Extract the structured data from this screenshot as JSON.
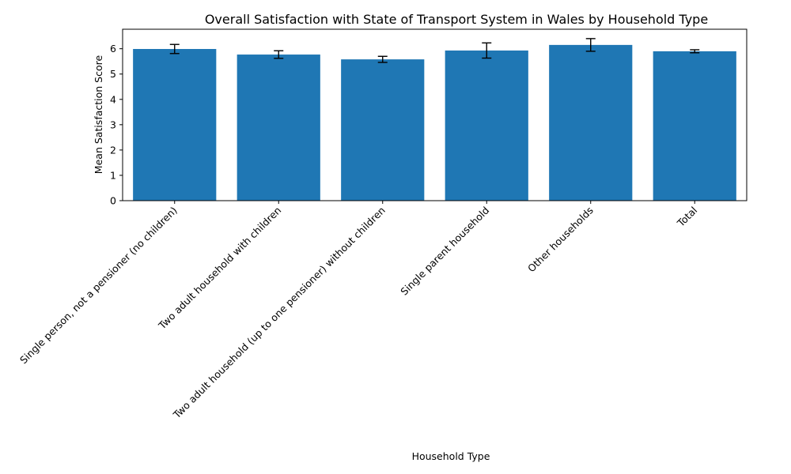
{
  "chart_data": {
    "type": "bar",
    "title": "Overall Satisfaction with State of Transport System in Wales by Household Type",
    "xlabel": "Household Type",
    "ylabel": "Mean Satisfaction Score",
    "categories": [
      "Single person, not a pensioner (no children)",
      "Two adult household with children",
      "Two adult household (up to one pensioner) without children",
      "Single parent household",
      "Other households",
      "Total"
    ],
    "values": [
      5.99,
      5.77,
      5.58,
      5.93,
      6.15,
      5.9
    ],
    "errors": [
      0.18,
      0.15,
      0.12,
      0.3,
      0.25,
      0.06
    ],
    "ylim": [
      0,
      6.77
    ],
    "yticks": [
      0,
      1,
      2,
      3,
      4,
      5,
      6
    ],
    "bar_color": "#1f77b4",
    "grid": false,
    "legend": "none"
  }
}
